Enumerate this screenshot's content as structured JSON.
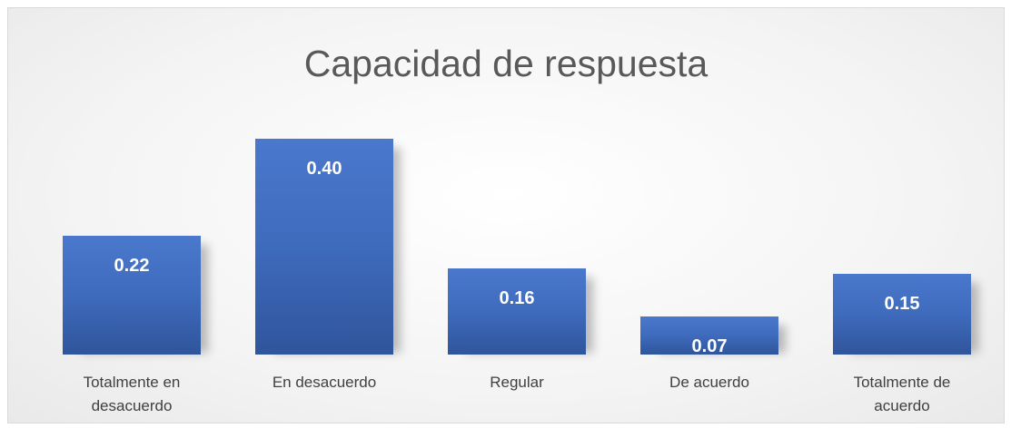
{
  "chart_data": {
    "type": "bar",
    "title": "Capacidad de respuesta",
    "categories": [
      "Totalmente en desacuerdo",
      "En desacuerdo",
      "Regular",
      "De acuerdo",
      "Totalmente de acuerdo"
    ],
    "values": [
      0.22,
      0.4,
      0.16,
      0.07,
      0.15
    ],
    "value_labels": [
      "0.22",
      "0.40",
      "0.16",
      "0.07",
      "0.15"
    ],
    "color": "#4472c4"
  }
}
